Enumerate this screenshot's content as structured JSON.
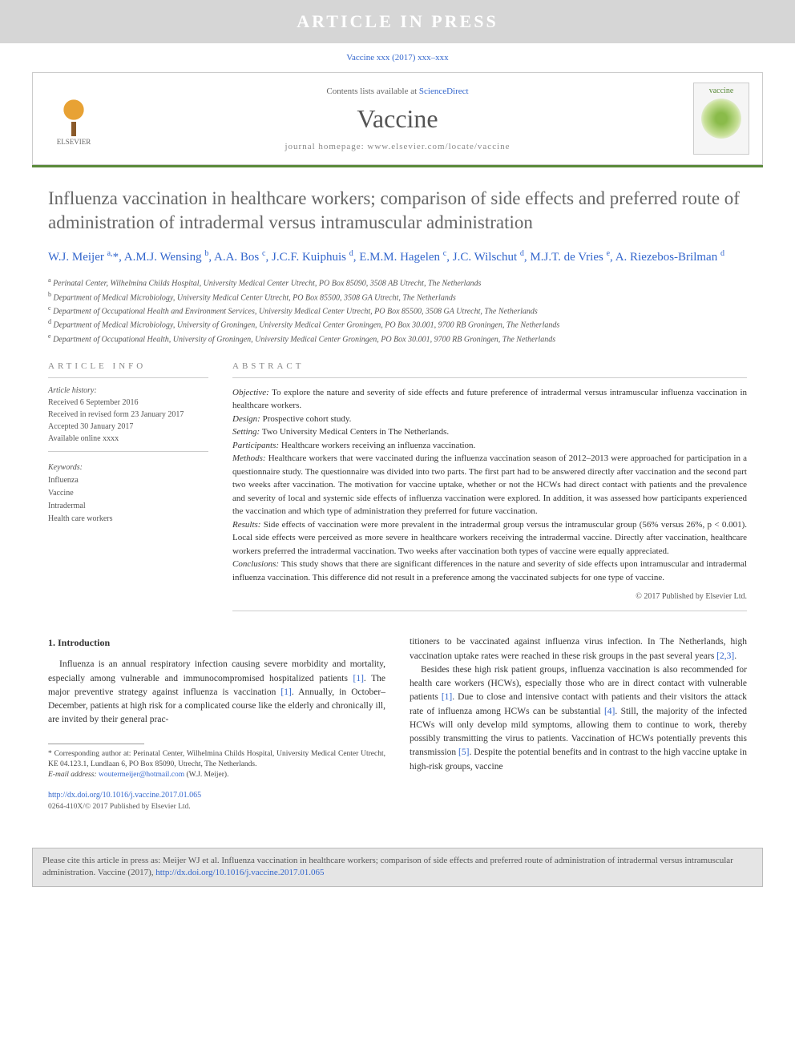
{
  "banner_text": "ARTICLE IN PRESS",
  "citation_header": "Vaccine xxx (2017) xxx–xxx",
  "header": {
    "contents_prefix": "Contents lists available at ",
    "contents_link": "ScienceDirect",
    "journal_name": "Vaccine",
    "homepage_label": "journal homepage: ",
    "homepage_url": "www.elsevier.com/locate/vaccine",
    "publisher_name": "ELSEVIER",
    "cover_title": "vaccine"
  },
  "accent_color": "#5a8a3a",
  "title": "Influenza vaccination in healthcare workers; comparison of side effects and preferred route of administration of intradermal versus intramuscular administration",
  "authors_html": "W.J. Meijer <sup>a,</sup>*, A.M.J. Wensing <sup>b</sup>, A.A. Bos <sup>c</sup>, J.C.F. Kuiphuis <sup>d</sup>, E.M.M. Hagelen <sup>c</sup>, J.C. Wilschut <sup>d</sup>, M.J.T. de Vries <sup>e</sup>, A. Riezebos-Brilman <sup>d</sup>",
  "affiliations": [
    {
      "sup": "a",
      "text": "Perinatal Center, Wilhelmina Childs Hospital, University Medical Center Utrecht, PO Box 85090, 3508 AB Utrecht, The Netherlands"
    },
    {
      "sup": "b",
      "text": "Department of Medical Microbiology, University Medical Center Utrecht, PO Box 85500, 3508 GA Utrecht, The Netherlands"
    },
    {
      "sup": "c",
      "text": "Department of Occupational Health and Environment Services, University Medical Center Utrecht, PO Box 85500, 3508 GA Utrecht, The Netherlands"
    },
    {
      "sup": "d",
      "text": "Department of Medical Microbiology, University of Groningen, University Medical Center Groningen, PO Box 30.001, 9700 RB Groningen, The Netherlands"
    },
    {
      "sup": "e",
      "text": "Department of Occupational Health, University of Groningen, University Medical Center Groningen, PO Box 30.001, 9700 RB Groningen, The Netherlands"
    }
  ],
  "article_info_heading": "ARTICLE INFO",
  "history_label": "Article history:",
  "history": [
    "Received 6 September 2016",
    "Received in revised form 23 January 2017",
    "Accepted 30 January 2017",
    "Available online xxxx"
  ],
  "keywords_label": "Keywords:",
  "keywords": [
    "Influenza",
    "Vaccine",
    "Intradermal",
    "Health care workers"
  ],
  "abstract_heading": "ABSTRACT",
  "abstract": {
    "objective": {
      "label": "Objective:",
      "text": " To explore the nature and severity of side effects and future preference of intradermal versus intramuscular influenza vaccination in healthcare workers."
    },
    "design": {
      "label": "Design:",
      "text": " Prospective cohort study."
    },
    "setting": {
      "label": "Setting:",
      "text": " Two University Medical Centers in The Netherlands."
    },
    "participants": {
      "label": "Participants:",
      "text": " Healthcare workers receiving an influenza vaccination."
    },
    "methods": {
      "label": "Methods:",
      "text": " Healthcare workers that were vaccinated during the influenza vaccination season of 2012–2013 were approached for participation in a questionnaire study. The questionnaire was divided into two parts. The first part had to be answered directly after vaccination and the second part two weeks after vaccination. The motivation for vaccine uptake, whether or not the HCWs had direct contact with patients and the prevalence and severity of local and systemic side effects of influenza vaccination were explored. In addition, it was assessed how participants experienced the vaccination and which type of administration they preferred for future vaccination."
    },
    "results": {
      "label": "Results:",
      "text": " Side effects of vaccination were more prevalent in the intradermal group versus the intramuscular group (56% versus 26%, p < 0.001). Local side effects were perceived as more severe in healthcare workers receiving the intradermal vaccine. Directly after vaccination, healthcare workers preferred the intradermal vaccination. Two weeks after vaccination both types of vaccine were equally appreciated."
    },
    "conclusions": {
      "label": "Conclusions:",
      "text": " This study shows that there are significant differences in the nature and severity of side effects upon intramuscular and intradermal influenza vaccination. This difference did not result in a preference among the vaccinated subjects for one type of vaccine."
    }
  },
  "copyright": "© 2017 Published by Elsevier Ltd.",
  "intro_heading": "1. Introduction",
  "col1_p1": "Influenza is an annual respiratory infection causing severe morbidity and mortality, especially among vulnerable and immunocompromised hospitalized patients [1]. The major preventive strategy against influenza is vaccination [1]. Annually, in October–December, patients at high risk for a complicated course like the elderly and chronically ill, are invited by their general prac-",
  "col2_p1": "titioners to be vaccinated against influenza virus infection. In The Netherlands, high vaccination uptake rates were reached in these risk groups in the past several years [2,3].",
  "col2_p2": "Besides these high risk patient groups, influenza vaccination is also recommended for health care workers (HCWs), especially those who are in direct contact with vulnerable patients [1]. Due to close and intensive contact with patients and their visitors the attack rate of influenza among HCWs can be substantial [4]. Still, the majority of the infected HCWs will only develop mild symptoms, allowing them to continue to work, thereby possibly transmitting the virus to patients. Vaccination of HCWs potentially prevents this transmission [5]. Despite the potential benefits and in contrast to the high vaccine uptake in high-risk groups, vaccine",
  "footnotes": {
    "corresponding": "* Corresponding author at: Perinatal Center, Wilhelmina Childs Hospital, University Medical Center Utrecht, KE 04.123.1, Lundlaan 6, PO Box 85090, Utrecht, The Netherlands.",
    "email_label": "E-mail address: ",
    "email": "woutermeijer@hotmail.com",
    "email_suffix": " (W.J. Meijer)."
  },
  "doi_url": "http://dx.doi.org/10.1016/j.vaccine.2017.01.065",
  "doi_sub": "0264-410X/© 2017 Published by Elsevier Ltd.",
  "cite_box": {
    "prefix": "Please cite this article in press as: Meijer WJ et al. Influenza vaccination in healthcare workers; comparison of side effects and preferred route of administration of intradermal versus intramuscular administration. Vaccine (2017), ",
    "url": "http://dx.doi.org/10.1016/j.vaccine.2017.01.065"
  }
}
